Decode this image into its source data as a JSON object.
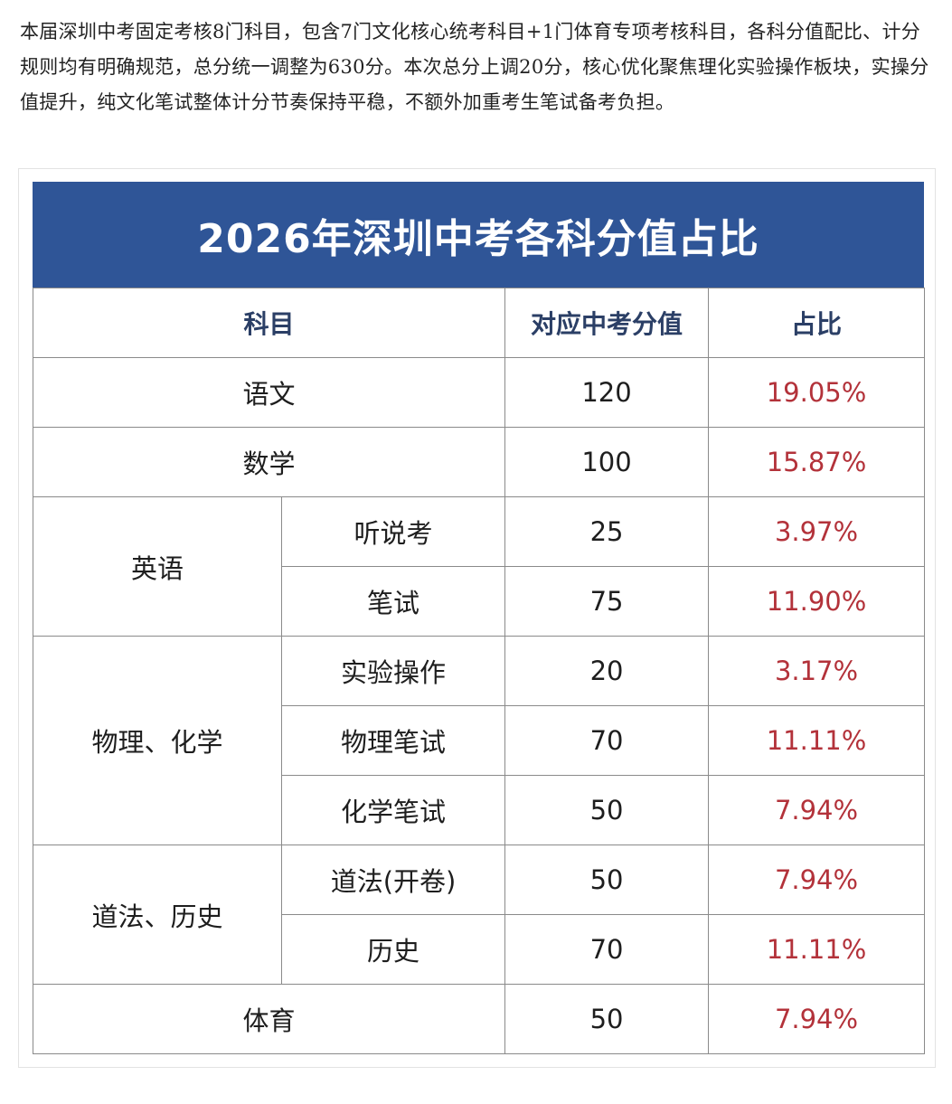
{
  "intro": {
    "paragraph": "本届深圳中考固定考核8门科目，包含7门文化核心统考科目+1门体育专项考核科目，各科分值配比、计分规则均有明确规范，总分统一调整为630分。本次总分上调20分，核心优化聚焦理化实验操作板块，实操分值提升，纯文化笔试整体计分节奏保持平稳，不额外加重考生笔试备考负担。"
  },
  "table": {
    "title": "2026年深圳中考各科分值占比",
    "headers": {
      "subject": "科目",
      "score": "对应中考分值",
      "ratio": "占比"
    },
    "rows": {
      "chinese": {
        "subject": "语文",
        "score": "120",
        "ratio": "19.05%"
      },
      "math": {
        "subject": "数学",
        "score": "100",
        "ratio": "15.87%"
      },
      "english": {
        "subject": "英语",
        "listening": {
          "item": "听说考",
          "score": "25",
          "ratio": "3.97%"
        },
        "written": {
          "item": "笔试",
          "score": "75",
          "ratio": "11.90%"
        }
      },
      "physchem": {
        "subject": "物理、化学",
        "lab": {
          "item": "实验操作",
          "score": "20",
          "ratio": "3.17%"
        },
        "physics": {
          "item": "物理笔试",
          "score": "70",
          "ratio": "11.11%"
        },
        "chemistry": {
          "item": "化学笔试",
          "score": "50",
          "ratio": "7.94%"
        }
      },
      "lawhistory": {
        "subject": "道法、历史",
        "law": {
          "item": "道法(开卷)",
          "score": "50",
          "ratio": "7.94%"
        },
        "history": {
          "item": "历史",
          "score": "70",
          "ratio": "11.11%"
        }
      },
      "pe": {
        "subject": "体育",
        "score": "50",
        "ratio": "7.94%"
      }
    }
  },
  "colors": {
    "banner": "#2f5597",
    "header_text": "#2b3f66",
    "ratio_text": "#b3323a"
  }
}
